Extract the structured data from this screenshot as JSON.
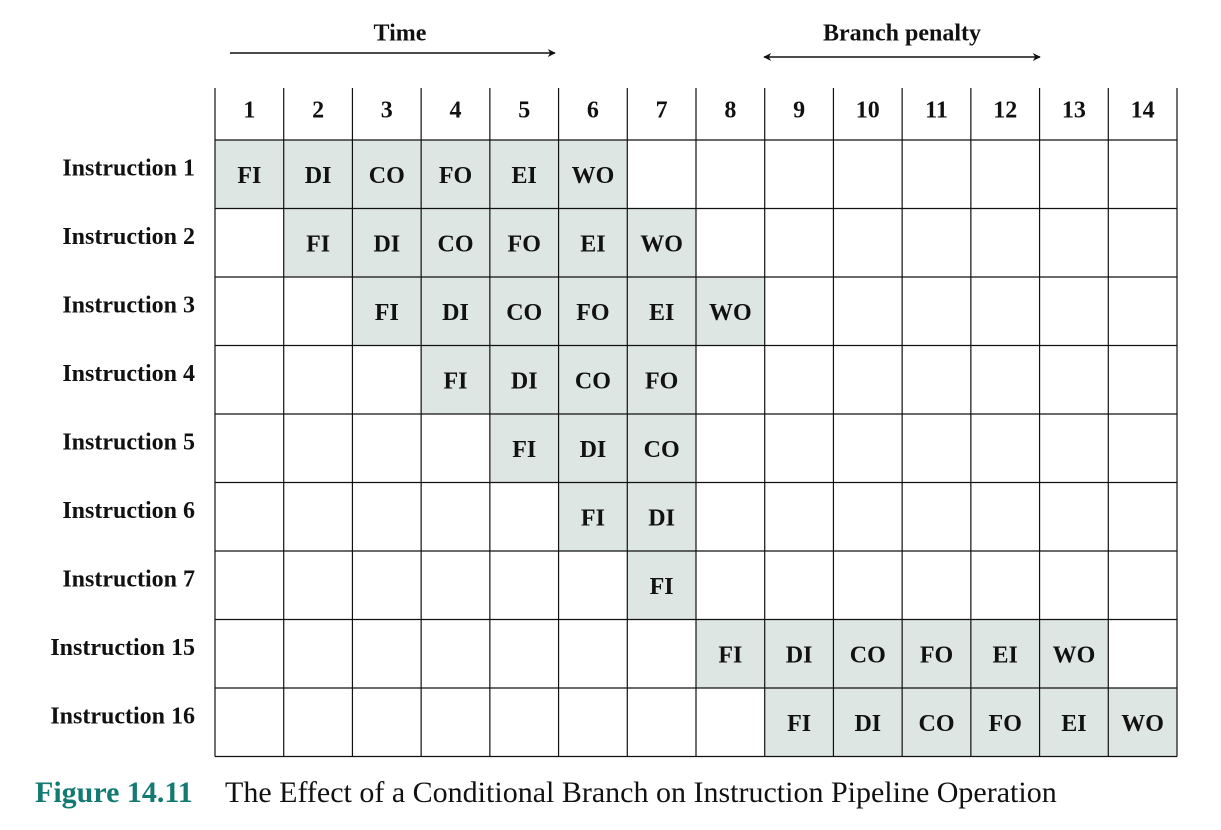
{
  "header": {
    "time_label": "Time",
    "penalty_label": "Branch penalty"
  },
  "table": {
    "columns": [
      "1",
      "2",
      "3",
      "4",
      "5",
      "6",
      "7",
      "8",
      "9",
      "10",
      "11",
      "12",
      "13",
      "14"
    ],
    "rows": [
      {
        "label": "Instruction 1",
        "cells": [
          "FI",
          "DI",
          "CO",
          "FO",
          "EI",
          "WO",
          null,
          null,
          null,
          null,
          null,
          null,
          null,
          null
        ]
      },
      {
        "label": "Instruction 2",
        "cells": [
          null,
          "FI",
          "DI",
          "CO",
          "FO",
          "EI",
          "WO",
          null,
          null,
          null,
          null,
          null,
          null,
          null
        ]
      },
      {
        "label": "Instruction 3",
        "cells": [
          null,
          null,
          "FI",
          "DI",
          "CO",
          "FO",
          "EI",
          "WO",
          null,
          null,
          null,
          null,
          null,
          null
        ]
      },
      {
        "label": "Instruction 4",
        "cells": [
          null,
          null,
          null,
          "FI",
          "DI",
          "CO",
          "FO",
          null,
          null,
          null,
          null,
          null,
          null,
          null
        ]
      },
      {
        "label": "Instruction 5",
        "cells": [
          null,
          null,
          null,
          null,
          "FI",
          "DI",
          "CO",
          null,
          null,
          null,
          null,
          null,
          null,
          null
        ]
      },
      {
        "label": "Instruction 6",
        "cells": [
          null,
          null,
          null,
          null,
          null,
          "FI",
          "DI",
          null,
          null,
          null,
          null,
          null,
          null,
          null
        ]
      },
      {
        "label": "Instruction 7",
        "cells": [
          null,
          null,
          null,
          null,
          null,
          null,
          "FI",
          null,
          null,
          null,
          null,
          null,
          null,
          null
        ]
      },
      {
        "label": "Instruction 15",
        "cells": [
          null,
          null,
          null,
          null,
          null,
          null,
          null,
          "FI",
          "DI",
          "CO",
          "FO",
          "EI",
          "WO",
          null
        ]
      },
      {
        "label": "Instruction 16",
        "cells": [
          null,
          null,
          null,
          null,
          null,
          null,
          null,
          null,
          "FI",
          "DI",
          "CO",
          "FO",
          "EI",
          "WO"
        ]
      }
    ]
  },
  "caption": {
    "number": "Figure 14.11",
    "text": "The Effect of a Conditional Branch on Instruction Pipeline Operation"
  }
}
